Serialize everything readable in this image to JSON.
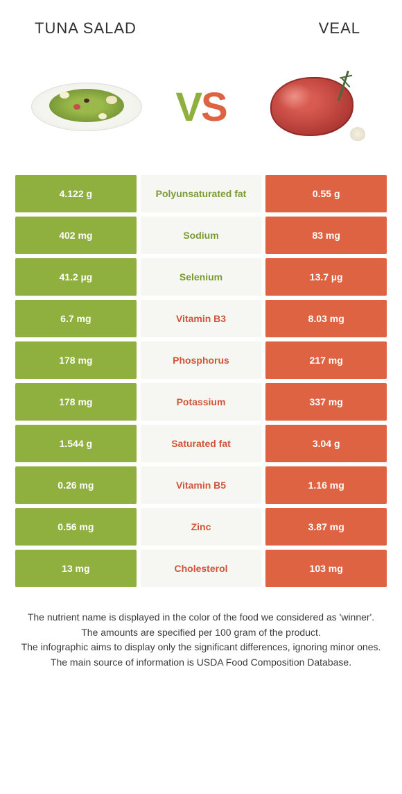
{
  "header": {
    "left": "TUNA SALAD",
    "right": "VEAL"
  },
  "vs": {
    "v": "V",
    "s": "S"
  },
  "colors": {
    "left": "#8faf3e",
    "right": "#de6343",
    "mid_bg": "#f6f7f3",
    "mid_green": "#7a9a32",
    "mid_red": "#d0543a",
    "text_white": "#ffffff",
    "body_text": "#3a3a3a"
  },
  "rows": [
    {
      "left": "4.122 g",
      "label": "Polyunsaturated fat",
      "right": "0.55 g",
      "winner": "left"
    },
    {
      "left": "402 mg",
      "label": "Sodium",
      "right": "83 mg",
      "winner": "left"
    },
    {
      "left": "41.2 µg",
      "label": "Selenium",
      "right": "13.7 µg",
      "winner": "left"
    },
    {
      "left": "6.7 mg",
      "label": "Vitamin B3",
      "right": "8.03 mg",
      "winner": "right"
    },
    {
      "left": "178 mg",
      "label": "Phosphorus",
      "right": "217 mg",
      "winner": "right"
    },
    {
      "left": "178 mg",
      "label": "Potassium",
      "right": "337 mg",
      "winner": "right"
    },
    {
      "left": "1.544 g",
      "label": "Saturated fat",
      "right": "3.04 g",
      "winner": "right"
    },
    {
      "left": "0.26 mg",
      "label": "Vitamin B5",
      "right": "1.16 mg",
      "winner": "right"
    },
    {
      "left": "0.56 mg",
      "label": "Zinc",
      "right": "3.87 mg",
      "winner": "right"
    },
    {
      "left": "13 mg",
      "label": "Cholesterol",
      "right": "103 mg",
      "winner": "right"
    }
  ],
  "footer": {
    "line1": "The nutrient name is displayed in the color of the food we considered as 'winner'.",
    "line2": "The amounts are specified per 100 gram of the product.",
    "line3": "The infographic aims to display only the significant differences, ignoring minor ones.",
    "line4": "The main source of information is USDA Food Composition Database."
  }
}
